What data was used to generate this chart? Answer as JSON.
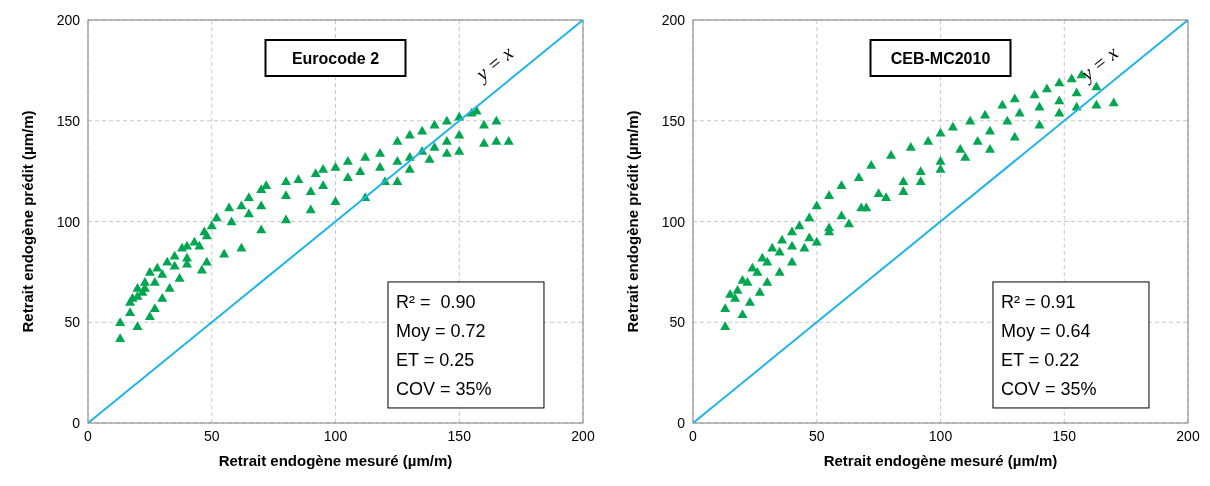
{
  "chart_data": [
    {
      "type": "scatter",
      "title": "Eurocode 2",
      "xlabel": "Retrait endogène mesuré (µm/m)",
      "ylabel": "Retrait endogène prédit (µm/m)",
      "xlim": [
        0,
        200
      ],
      "ylim": [
        0,
        200
      ],
      "xticks": [
        0,
        50,
        100,
        150,
        200
      ],
      "yticks": [
        0,
        50,
        100,
        150,
        200
      ],
      "grid": true,
      "marker": "triangle",
      "annotations": [
        "y = x",
        "R² =  0.90",
        "Moy = 0.72",
        "ET = 0.25",
        "COV = 35%"
      ],
      "series": [
        {
          "color": "#00a650",
          "x": [
            13,
            13,
            17,
            17,
            20,
            20,
            23,
            25,
            27,
            30,
            33,
            37,
            40,
            46,
            48,
            55,
            62,
            70,
            80,
            90,
            100,
            112,
            120,
            125,
            130,
            138,
            145,
            150,
            160,
            165,
            170,
            18,
            22,
            27,
            30,
            35,
            40,
            45,
            48,
            58,
            65,
            70,
            80,
            90,
            95,
            105,
            110,
            118,
            125,
            130,
            135,
            140,
            145,
            150,
            160,
            165,
            20,
            23,
            25,
            28,
            32,
            35,
            38,
            40,
            43,
            47,
            50,
            52,
            57,
            62,
            65,
            70,
            72,
            80,
            85,
            92,
            95,
            100,
            105,
            112,
            118,
            125,
            130,
            135,
            140,
            145,
            150,
            155,
            157
          ],
          "values": [
            42,
            50,
            55,
            60,
            48,
            63,
            67,
            53,
            57,
            62,
            67,
            72,
            79,
            76,
            80,
            84,
            87,
            96,
            101,
            106,
            110,
            112,
            120,
            120,
            126,
            131,
            134,
            135,
            139,
            140,
            140,
            62,
            65,
            70,
            74,
            78,
            82,
            88,
            93,
            100,
            104,
            108,
            113,
            115,
            118,
            122,
            125,
            127,
            130,
            132,
            135,
            137,
            140,
            143,
            148,
            150,
            67,
            70,
            75,
            77,
            80,
            83,
            87,
            88,
            90,
            95,
            98,
            102,
            107,
            108,
            112,
            116,
            118,
            120,
            121,
            124,
            126,
            127,
            130,
            132,
            134,
            140,
            143,
            145,
            148,
            150,
            152,
            154,
            155
          ]
        },
        {
          "type": "line",
          "color": "#1fb4e8",
          "line_style": "solid",
          "marker": "none",
          "x": [
            0,
            200
          ],
          "values": [
            0,
            200
          ]
        }
      ]
    },
    {
      "type": "scatter",
      "title": "CEB-MC2010",
      "xlabel": "Retrait endogène mesuré (µm/m)",
      "ylabel": "Retrait endogène prédit (µm/m)",
      "xlim": [
        0,
        200
      ],
      "ylim": [
        0,
        200
      ],
      "xticks": [
        0,
        50,
        100,
        150,
        200
      ],
      "yticks": [
        0,
        50,
        100,
        150,
        200
      ],
      "grid": true,
      "marker": "triangle",
      "annotations": [
        "y = x",
        "R² = 0.91",
        "Moy = 0.64",
        "ET = 0.22",
        "COV = 35%"
      ],
      "series": [
        {
          "color": "#00a650",
          "x": [
            13,
            13,
            17,
            20,
            23,
            27,
            30,
            35,
            40,
            45,
            50,
            55,
            63,
            70,
            78,
            85,
            92,
            100,
            110,
            120,
            130,
            140,
            148,
            155,
            163,
            170,
            18,
            22,
            26,
            30,
            35,
            40,
            47,
            55,
            60,
            68,
            75,
            85,
            92,
            100,
            108,
            115,
            120,
            127,
            132,
            140,
            148,
            155,
            163,
            15,
            20,
            24,
            28,
            32,
            36,
            40,
            43,
            47,
            50,
            55,
            60,
            67,
            72,
            80,
            88,
            95,
            100,
            105,
            112,
            118,
            125,
            130,
            138,
            143,
            148,
            153,
            157
          ],
          "values": [
            48,
            57,
            62,
            54,
            60,
            65,
            70,
            75,
            80,
            87,
            90,
            95,
            99,
            107,
            112,
            115,
            120,
            126,
            132,
            136,
            142,
            148,
            154,
            157,
            158,
            159,
            66,
            70,
            75,
            80,
            85,
            88,
            92,
            97,
            103,
            107,
            114,
            120,
            125,
            130,
            136,
            140,
            145,
            150,
            154,
            157,
            160,
            164,
            167,
            64,
            71,
            77,
            82,
            87,
            91,
            95,
            98,
            102,
            108,
            113,
            118,
            122,
            128,
            133,
            137,
            140,
            144,
            147,
            150,
            153,
            158,
            161,
            163,
            166,
            169,
            171,
            173
          ]
        },
        {
          "type": "line",
          "color": "#1fb4e8",
          "line_style": "solid",
          "marker": "none",
          "x": [
            0,
            200
          ],
          "values": [
            0,
            200
          ]
        }
      ]
    }
  ]
}
